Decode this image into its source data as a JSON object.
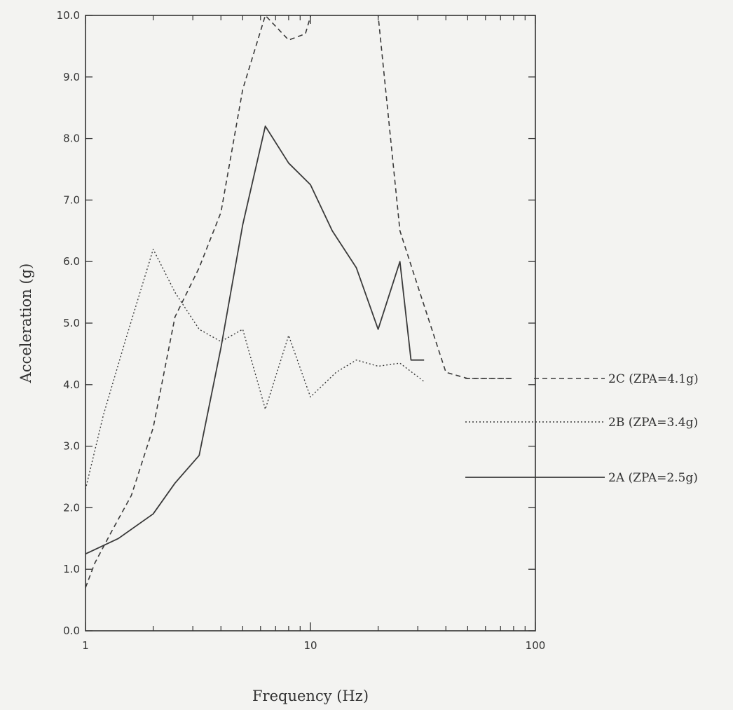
{
  "chart_data": {
    "type": "line",
    "title": "",
    "xlabel": "Frequency (Hz)",
    "ylabel": "Acceleration (g)",
    "xscale": "log",
    "xlim": [
      1,
      100
    ],
    "ylim": [
      0,
      10
    ],
    "x_tick_labels": [
      "1",
      "10",
      "100"
    ],
    "y_tick_labels": [
      "0.0",
      "1.0",
      "2.0",
      "3.0",
      "4.0",
      "5.0",
      "6.0",
      "7.0",
      "8.0",
      "9.0",
      "10.0"
    ],
    "grid": false,
    "legend_position": "right, outside plot",
    "series": [
      {
        "name": "2C (ZPA=4.1g)",
        "style": "dashed",
        "x": [
          1,
          1.1,
          1.3,
          1.6,
          2,
          2.5,
          3.2,
          4,
          5,
          6.3,
          8,
          9.5,
          11,
          13,
          16,
          20,
          25,
          30,
          40,
          50,
          63,
          80
        ],
        "y": [
          0.7,
          1.1,
          1.6,
          2.2,
          3.3,
          5.1,
          5.9,
          6.8,
          8.8,
          10.0,
          9.6,
          9.7,
          10.5,
          11.0,
          11.0,
          10.0,
          6.5,
          5.6,
          4.2,
          4.1,
          4.1,
          4.1
        ]
      },
      {
        "name": "2B (ZPA=3.4g)",
        "style": "dotted",
        "x": [
          1,
          1.2,
          1.5,
          2,
          2.5,
          3.2,
          4,
          5,
          6.3,
          8,
          10,
          13,
          16,
          20,
          25,
          32
        ],
        "y": [
          2.3,
          3.5,
          4.7,
          6.2,
          5.5,
          4.9,
          4.7,
          4.9,
          3.6,
          4.8,
          3.8,
          4.2,
          4.4,
          4.3,
          4.35,
          4.05
        ]
      },
      {
        "name": "2A (ZPA=2.5g)",
        "style": "solid",
        "x": [
          1,
          1.4,
          2,
          2.5,
          3.2,
          4,
          5,
          6.3,
          8,
          10,
          12.5,
          16,
          20,
          25,
          28,
          32
        ],
        "y": [
          1.25,
          1.5,
          1.9,
          2.4,
          2.85,
          4.6,
          6.6,
          8.2,
          7.6,
          7.25,
          6.5,
          5.9,
          4.9,
          6.0,
          4.4,
          4.4
        ]
      }
    ]
  }
}
